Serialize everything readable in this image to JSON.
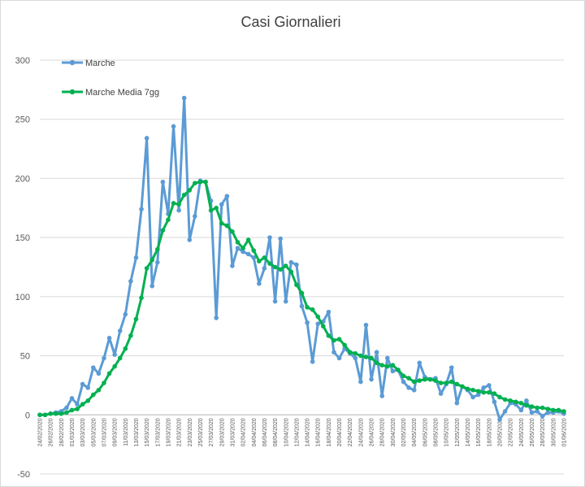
{
  "chart_data": {
    "type": "line",
    "title": "Casi Giornalieri",
    "xlabel": "",
    "ylabel": "",
    "ylim": [
      -50,
      300
    ],
    "yticks": [
      -50,
      0,
      50,
      100,
      150,
      200,
      250,
      300
    ],
    "grid": true,
    "legend_position": "top-left",
    "x": [
      "24/02/2020",
      "25/02/2020",
      "26/02/2020",
      "27/02/2020",
      "28/02/2020",
      "29/02/2020",
      "01/03/2020",
      "02/03/2020",
      "03/03/2020",
      "04/03/2020",
      "05/03/2020",
      "06/03/2020",
      "07/03/2020",
      "08/03/2020",
      "09/03/2020",
      "10/03/2020",
      "11/03/2020",
      "12/03/2020",
      "13/03/2020",
      "14/03/2020",
      "15/03/2020",
      "16/03/2020",
      "17/03/2020",
      "18/03/2020",
      "19/03/2020",
      "20/03/2020",
      "21/03/2020",
      "22/03/2020",
      "23/03/2020",
      "24/03/2020",
      "25/03/2020",
      "26/03/2020",
      "27/03/2020",
      "28/03/2020",
      "29/03/2020",
      "30/03/2020",
      "31/03/2020",
      "01/04/2020",
      "02/04/2020",
      "03/04/2020",
      "04/04/2020",
      "05/04/2020",
      "06/04/2020",
      "07/04/2020",
      "08/04/2020",
      "09/04/2020",
      "10/04/2020",
      "11/04/2020",
      "12/04/2020",
      "13/04/2020",
      "14/04/2020",
      "15/04/2020",
      "16/04/2020",
      "17/04/2020",
      "18/04/2020",
      "19/04/2020",
      "20/04/2020",
      "21/04/2020",
      "22/04/2020",
      "23/04/2020",
      "24/04/2020",
      "25/04/2020",
      "26/04/2020",
      "27/04/2020",
      "28/04/2020",
      "29/04/2020",
      "30/04/2020",
      "01/05/2020",
      "02/05/2020",
      "03/05/2020",
      "04/05/2020",
      "05/05/2020",
      "06/05/2020",
      "07/05/2020",
      "08/05/2020",
      "09/05/2020",
      "10/05/2020",
      "11/05/2020",
      "12/05/2020",
      "13/05/2020",
      "14/05/2020",
      "15/05/2020",
      "16/05/2020",
      "17/05/2020",
      "18/05/2020",
      "19/05/2020",
      "20/05/2020",
      "21/05/2020",
      "22/05/2020",
      "23/05/2020",
      "24/05/2020",
      "25/05/2020",
      "26/05/2020",
      "27/05/2020",
      "28/05/2020",
      "29/05/2020",
      "30/05/2020",
      "31/05/2020",
      "01/06/2020"
    ],
    "xtick_labels": [
      "24/02/2020",
      "26/02/2020",
      "28/02/2020",
      "01/03/2020",
      "03/03/2020",
      "05/03/2020",
      "07/03/2020",
      "09/03/2020",
      "11/03/2020",
      "13/03/2020",
      "15/03/2020",
      "17/03/2020",
      "19/03/2020",
      "21/03/2020",
      "23/03/2020",
      "25/03/2020",
      "27/03/2020",
      "29/03/2020",
      "31/03/2020",
      "02/04/2020",
      "04/04/2020",
      "06/04/2020",
      "08/04/2020",
      "10/04/2020",
      "12/04/2020",
      "14/04/2020",
      "16/04/2020",
      "18/04/2020",
      "20/04/2020",
      "22/04/2020",
      "24/04/2020",
      "26/04/2020",
      "28/04/2020",
      "30/04/2020",
      "02/05/2020",
      "04/05/2020",
      "06/05/2020",
      "08/05/2020",
      "10/05/2020",
      "12/05/2020",
      "14/05/2020",
      "16/05/2020",
      "18/05/2020",
      "20/05/2020",
      "22/05/2020",
      "24/05/2020",
      "26/05/2020",
      "28/05/2020",
      "30/05/2020",
      "01/06/2020"
    ],
    "series": [
      {
        "name": "Marche",
        "color": "#5b9bd5",
        "values": [
          0,
          0,
          1,
          2,
          3,
          6,
          14,
          9,
          26,
          23,
          40,
          35,
          48,
          65,
          51,
          71,
          85,
          113,
          133,
          174,
          234,
          109,
          129,
          197,
          170,
          244,
          173,
          268,
          148,
          168,
          198,
          197,
          181,
          82,
          178,
          185,
          126,
          141,
          138,
          136,
          133,
          111,
          124,
          150,
          96,
          149,
          96,
          129,
          127,
          92,
          78,
          45,
          77,
          79,
          87,
          53,
          48,
          56,
          52,
          48,
          28,
          76,
          30,
          53,
          16,
          48,
          37,
          38,
          28,
          23,
          21,
          44,
          32,
          30,
          31,
          18,
          26,
          40,
          10,
          24,
          21,
          15,
          17,
          23,
          25,
          11,
          -4,
          3,
          10,
          9,
          4,
          12,
          2,
          3,
          -1,
          2,
          2,
          3,
          1
        ]
      },
      {
        "name": "Marche Media 7gg",
        "color": "#00b050",
        "values": [
          0,
          0,
          1,
          1,
          1,
          2,
          4,
          5,
          9,
          12,
          17,
          21,
          27,
          35,
          41,
          48,
          56,
          67,
          81,
          99,
          124,
          131,
          140,
          156,
          165,
          179,
          178,
          186,
          190,
          196,
          197,
          197,
          173,
          175,
          162,
          160,
          155,
          146,
          141,
          148,
          139,
          130,
          133,
          128,
          125,
          123,
          126,
          121,
          110,
          103,
          91,
          89,
          83,
          75,
          67,
          63,
          64,
          59,
          53,
          52,
          50,
          49,
          48,
          44,
          42,
          41,
          42,
          38,
          33,
          31,
          28,
          29,
          30,
          30,
          29,
          27,
          27,
          28,
          26,
          24,
          22,
          21,
          20,
          19,
          19,
          18,
          15,
          13,
          12,
          11,
          10,
          8,
          7,
          6,
          6,
          5,
          4,
          4,
          3
        ]
      }
    ]
  }
}
